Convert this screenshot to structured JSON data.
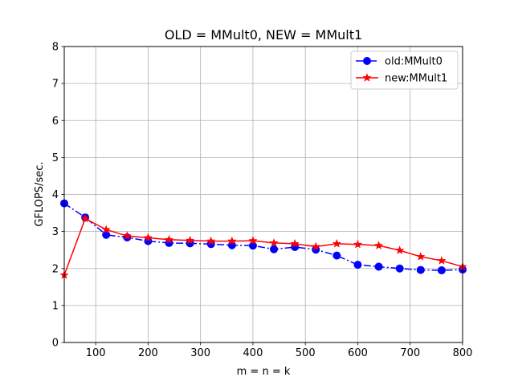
{
  "chart_data": {
    "type": "line",
    "title": "OLD = MMult0, NEW = MMult1",
    "xlabel": "m = n = k",
    "ylabel": "GFLOPS/sec.",
    "xlim": [
      40,
      800
    ],
    "ylim": [
      0,
      8
    ],
    "xticks": [
      100,
      200,
      300,
      400,
      500,
      600,
      700,
      800
    ],
    "yticks": [
      0,
      1,
      2,
      3,
      4,
      5,
      6,
      7,
      8
    ],
    "grid": true,
    "legend_position": "top-right",
    "x": [
      40,
      80,
      120,
      160,
      200,
      240,
      280,
      320,
      360,
      400,
      440,
      480,
      520,
      560,
      600,
      640,
      680,
      720,
      760,
      800
    ],
    "series": [
      {
        "name": "old:MMult0",
        "color": "#0000ff",
        "marker": "circle",
        "linestyle": "dashdot",
        "values": [
          3.76,
          3.38,
          2.91,
          2.84,
          2.74,
          2.69,
          2.68,
          2.66,
          2.63,
          2.62,
          2.52,
          2.58,
          2.51,
          2.35,
          2.1,
          2.05,
          2.0,
          1.96,
          1.95,
          1.97
        ]
      },
      {
        "name": "new:MMult1",
        "color": "#ff0000",
        "marker": "star",
        "linestyle": "solid",
        "values": [
          1.82,
          3.35,
          3.05,
          2.88,
          2.83,
          2.78,
          2.76,
          2.74,
          2.74,
          2.75,
          2.69,
          2.67,
          2.59,
          2.67,
          2.65,
          2.62,
          2.49,
          2.32,
          2.21,
          2.05
        ]
      }
    ]
  }
}
